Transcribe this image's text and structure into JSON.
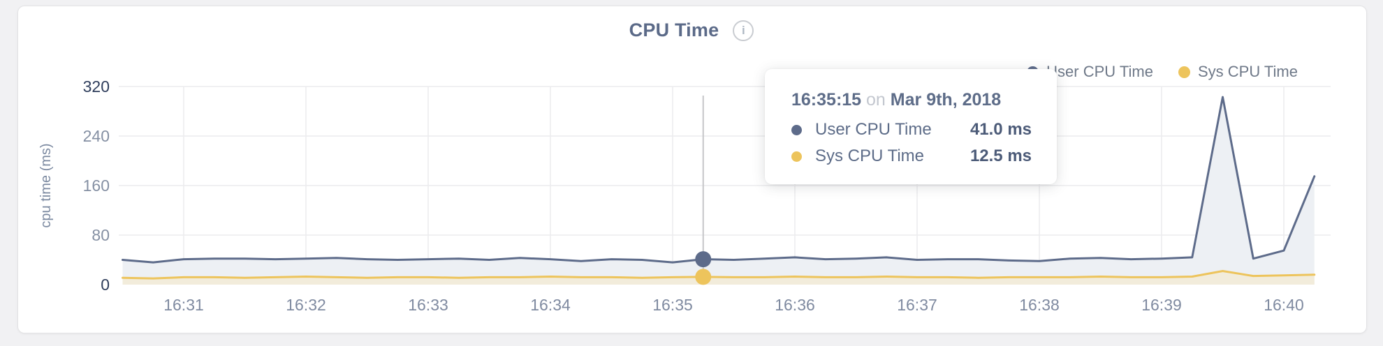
{
  "header": {
    "title": "CPU Time"
  },
  "legend": [
    {
      "label": "User CPU Time",
      "color": "#5d6b8a"
    },
    {
      "label": "Sys CPU Time",
      "color": "#edc45c"
    }
  ],
  "tooltip": {
    "time": "16:35:15",
    "connector": "on",
    "date": "Mar 9th, 2018",
    "rows": [
      {
        "label": "User CPU Time",
        "value": "41.0 ms",
        "color": "#5d6b8a"
      },
      {
        "label": "Sys CPU Time",
        "value": "12.5 ms",
        "color": "#edc45c"
      }
    ]
  },
  "chart_data": {
    "type": "area",
    "title": "CPU Time",
    "ylabel": "cpu time (ms)",
    "ylim": [
      0,
      320
    ],
    "yticks": [
      0,
      80,
      160,
      240,
      320
    ],
    "xticks": [
      "16:31",
      "16:32",
      "16:33",
      "16:34",
      "16:35",
      "16:36",
      "16:37",
      "16:38",
      "16:39",
      "16:40"
    ],
    "grid": true,
    "legend_position": "top-right",
    "x": [
      "16:30:30",
      "16:30:45",
      "16:31:00",
      "16:31:15",
      "16:31:30",
      "16:31:45",
      "16:32:00",
      "16:32:15",
      "16:32:30",
      "16:32:45",
      "16:33:00",
      "16:33:15",
      "16:33:30",
      "16:33:45",
      "16:34:00",
      "16:34:15",
      "16:34:30",
      "16:34:45",
      "16:35:00",
      "16:35:15",
      "16:35:30",
      "16:35:45",
      "16:36:00",
      "16:36:15",
      "16:36:30",
      "16:36:45",
      "16:37:00",
      "16:37:15",
      "16:37:30",
      "16:37:45",
      "16:38:00",
      "16:38:15",
      "16:38:30",
      "16:38:45",
      "16:39:00",
      "16:39:15",
      "16:39:30",
      "16:39:45",
      "16:40:00",
      "16:40:15"
    ],
    "series": [
      {
        "name": "User CPU Time",
        "color": "#5d6b8a",
        "fill": "#edf0f4",
        "values": [
          40,
          36,
          41,
          42,
          42,
          41,
          42,
          43,
          41,
          40,
          41,
          42,
          40,
          43,
          41,
          38,
          41,
          40,
          36,
          41,
          40,
          42,
          44,
          41,
          42,
          44,
          40,
          41,
          41,
          39,
          38,
          42,
          43,
          41,
          42,
          44,
          303,
          42,
          55,
          175
        ]
      },
      {
        "name": "Sys CPU Time",
        "color": "#edc45c",
        "fill": "#f2ecdb",
        "values": [
          11,
          10,
          12,
          12,
          11,
          12,
          13,
          12,
          11,
          12,
          12,
          11,
          12,
          12,
          13,
          12,
          12,
          11,
          12,
          12.5,
          12,
          12,
          13,
          12,
          12,
          13,
          12,
          12,
          11,
          12,
          12,
          12,
          13,
          12,
          12,
          13,
          22,
          14,
          15,
          16
        ]
      }
    ],
    "hover": {
      "time": "16:35:15",
      "date": "Mar 9th, 2018",
      "user_value_ms": 41.0,
      "sys_value_ms": 12.5
    }
  }
}
